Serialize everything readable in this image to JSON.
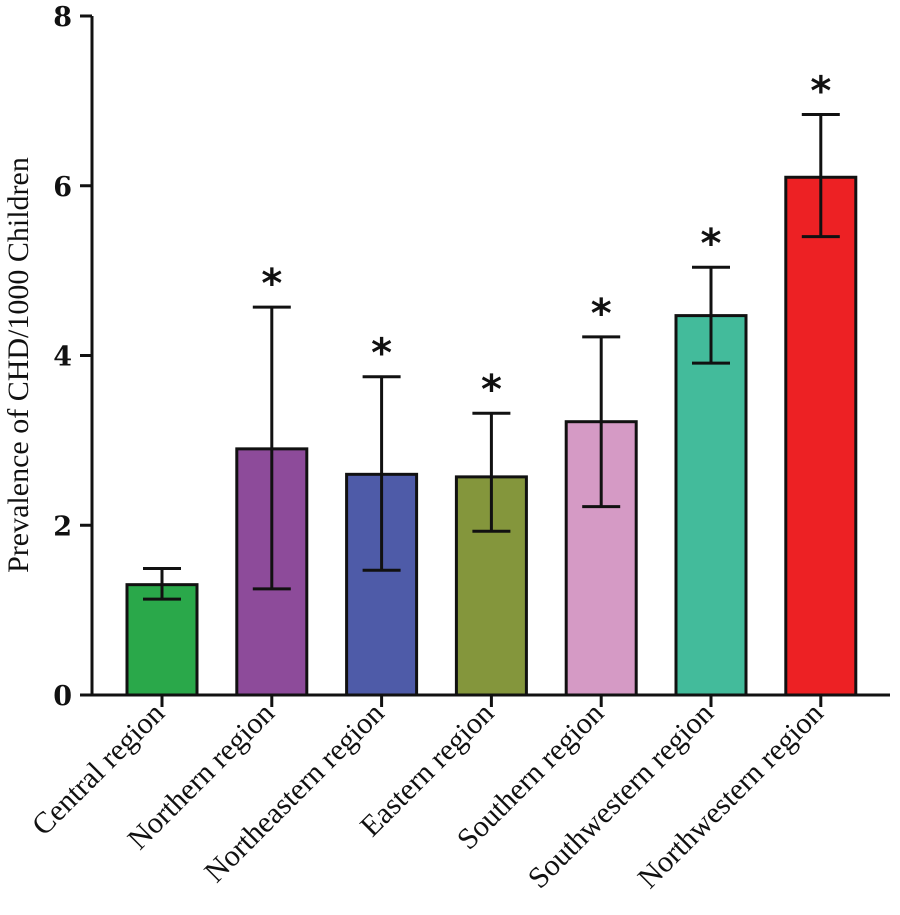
{
  "chart_data": {
    "type": "bar",
    "title": "",
    "xlabel": "",
    "ylabel": "Prevalence of CHD/1000 Children",
    "ylim": [
      0,
      8
    ],
    "yticks": [
      0,
      2,
      4,
      6,
      8
    ],
    "grid": false,
    "categories": [
      "Central region",
      "Northern region",
      "Northeastern region",
      "Eastern region",
      "Southern region",
      "Southwestern region",
      "Northwestern region"
    ],
    "values": [
      1.3,
      2.9,
      2.6,
      2.57,
      3.22,
      4.47,
      6.1
    ],
    "error_low": [
      1.13,
      1.25,
      1.47,
      1.93,
      2.22,
      3.91,
      5.4
    ],
    "error_high": [
      1.49,
      4.57,
      3.75,
      3.32,
      4.22,
      5.04,
      6.84
    ],
    "significance": [
      "",
      "*",
      "*",
      "*",
      "*",
      "*",
      "*"
    ],
    "colors": [
      "#2aa84a",
      "#8d4b9a",
      "#4e5ba8",
      "#84963c",
      "#d59ac5",
      "#43bb9b",
      "#ed2124"
    ]
  }
}
